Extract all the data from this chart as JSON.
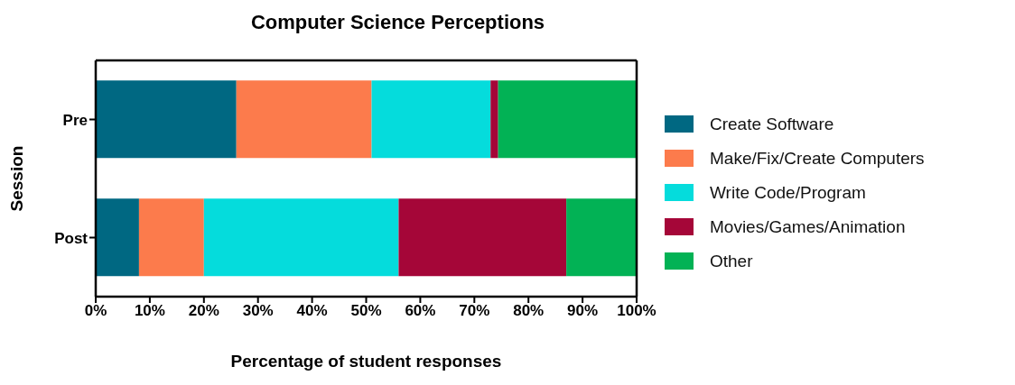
{
  "chart_data": {
    "type": "bar",
    "orientation": "horizontal",
    "stacked": true,
    "title": "Computer Science Perceptions",
    "xlabel": "Percentage of student responses",
    "ylabel": "Session",
    "categories": [
      "Pre",
      "Post"
    ],
    "series": [
      {
        "name": "Create Software",
        "color": "#006882",
        "values": [
          26,
          8
        ]
      },
      {
        "name": "Make/Fix/Create Computers",
        "color": "#fc7b4c",
        "values": [
          25,
          12
        ]
      },
      {
        "name": "Write Code/Program",
        "color": "#05dcdc",
        "values": [
          22,
          36
        ]
      },
      {
        "name": "Movies/Games/Animation",
        "color": "#a50638",
        "values": [
          1.4,
          31
        ]
      },
      {
        "name": "Other",
        "color": "#02b255",
        "values": [
          25.6,
          13
        ]
      }
    ],
    "xlim": [
      0,
      100
    ],
    "xticks": [
      {
        "value": 0,
        "label": "0%"
      },
      {
        "value": 10,
        "label": "10%"
      },
      {
        "value": 20,
        "label": "20%"
      },
      {
        "value": 30,
        "label": "30%"
      },
      {
        "value": 40,
        "label": "40%"
      },
      {
        "value": 50,
        "label": "50%"
      },
      {
        "value": 60,
        "label": "60%"
      },
      {
        "value": 70,
        "label": "70%"
      },
      {
        "value": 80,
        "label": "80%"
      },
      {
        "value": 90,
        "label": "90%"
      },
      {
        "value": 100,
        "label": "100%"
      }
    ],
    "grid": false,
    "legend": "right"
  }
}
